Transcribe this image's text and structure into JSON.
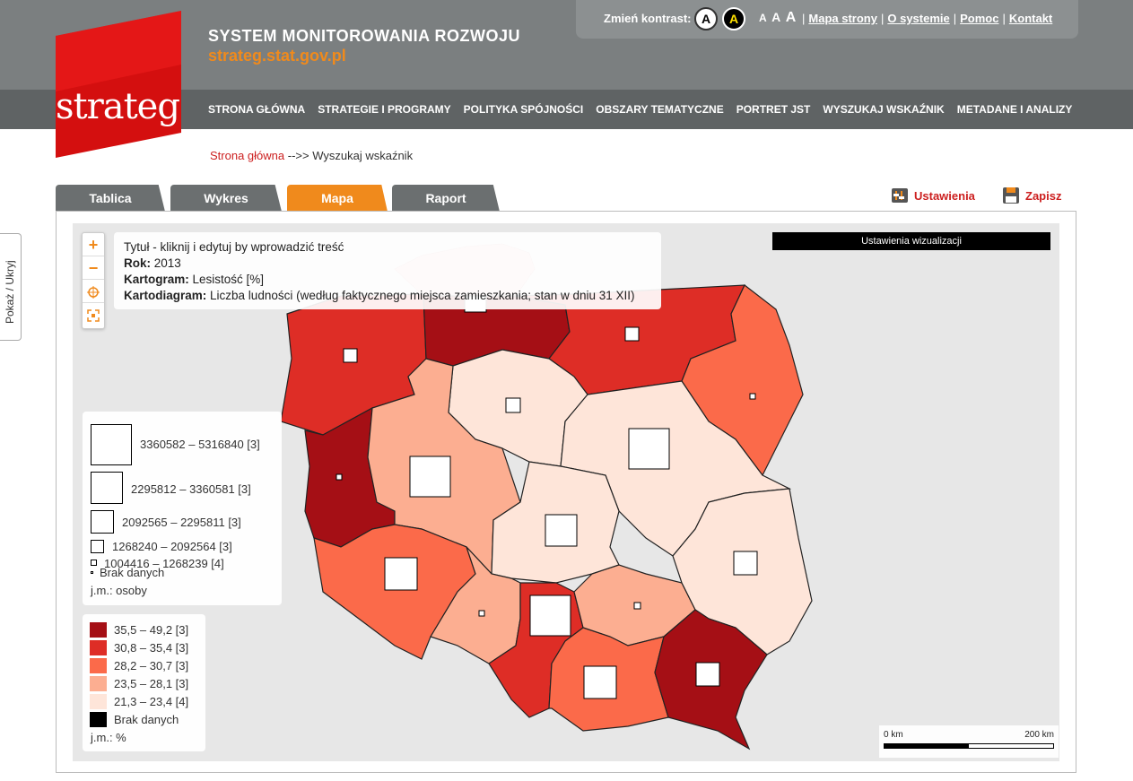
{
  "header": {
    "site_title": "SYSTEM MONITOROWANIA ROZWOJU",
    "site_url": "strateg.stat.gov.pl",
    "logo_text": "strateg",
    "contrast_label": "Zmień kontrast:",
    "contrast_normal": "A",
    "contrast_high": "A",
    "font_sizes": [
      "A",
      "A",
      "A"
    ],
    "links": [
      "Mapa strony",
      "O systemie",
      "Pomoc",
      "Kontakt"
    ]
  },
  "nav": [
    "STRONA GŁÓWNA",
    "STRATEGIE I PROGRAMY",
    "POLITYKA SPÓJNOŚCI",
    "OBSZARY TEMATYCZNE",
    "PORTRET JST",
    "WYSZUKAJ WSKAŹNIK",
    "METADANE I ANALIZY"
  ],
  "breadcrumb": {
    "home": "Strona główna",
    "separator": "-->>",
    "current": "Wyszukaj wskaźnik"
  },
  "tabs": [
    "Tablica",
    "Wykres",
    "Mapa",
    "Raport"
  ],
  "active_tab": "Mapa",
  "actions": {
    "settings": "Ustawienia",
    "save": "Zapisz"
  },
  "side_toggle": "Pokaż / Ukryj",
  "map": {
    "zoom_in": "+",
    "zoom_out": "−",
    "title_line": "Tytuł - kliknij i edytuj by wprowadzić treść",
    "year_label": "Rok:",
    "year": "2013",
    "cartogram_label": "Kartogram:",
    "cartogram": "Lesistość [%]",
    "cartodiagram_label": "Kartodiagram:",
    "cartodiagram": "Liczba ludności (według faktycznego miejsca zamieszkania; stan w dniu 31 XII)",
    "viz_settings": "Ustawienia wizualizacji",
    "population_legend": {
      "items": [
        "3360582 – 5316840 [3]",
        "2295812 – 3360581 [3]",
        "2092565 – 2295811 [3]",
        "1268240 – 2092564 [3]",
        "1004416 – 1268239 [4]"
      ],
      "no_data": "Brak danych",
      "unit": "j.m.: osoby"
    },
    "forest_legend": {
      "items": [
        {
          "label": "35,5 – 49,2 [3]",
          "color": "#a50f15"
        },
        {
          "label": "30,8 – 35,4 [3]",
          "color": "#de2d26"
        },
        {
          "label": "28,2 – 30,7 [3]",
          "color": "#fb6a4a"
        },
        {
          "label": "23,5 – 28,1 [3]",
          "color": "#fcae91"
        },
        {
          "label": "21,3 – 23,4 [4]",
          "color": "#fee5d9"
        }
      ],
      "no_data": {
        "label": "Brak danych",
        "color": "#000000"
      },
      "unit": "j.m.: %"
    },
    "scale": {
      "left": "0 km",
      "right": "200 km"
    }
  }
}
